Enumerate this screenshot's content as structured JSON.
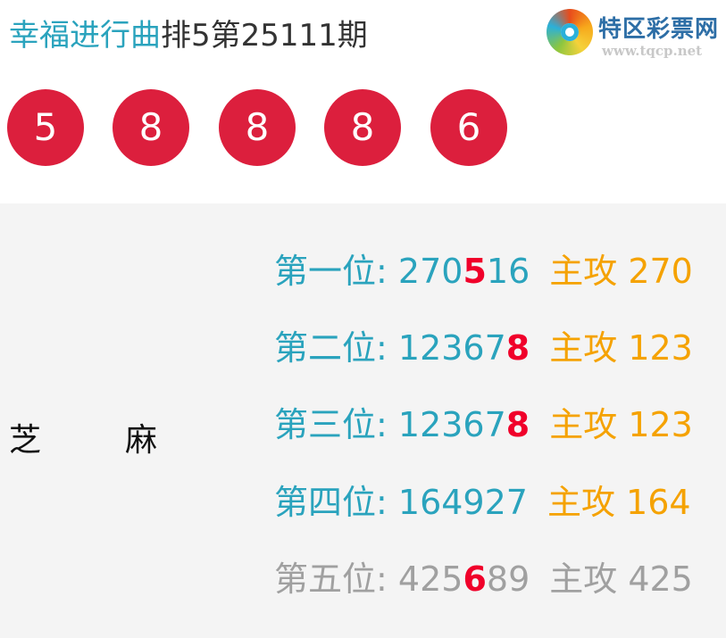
{
  "header": {
    "game": "幸福进行曲",
    "issue": "排5第25111期"
  },
  "logo": {
    "name": "特区彩票网",
    "url": "www.tqcp.net"
  },
  "balls": [
    "5",
    "8",
    "8",
    "8",
    "6"
  ],
  "colors": {
    "ball": "#dc1f3d",
    "label": "#2aa3bd",
    "hit": "#f0002a",
    "attack": "#f5a200",
    "muted": "#a0a0a0"
  },
  "name": [
    "芝",
    "麻"
  ],
  "rows": [
    {
      "label": "第一位:",
      "pre": "270",
      "hit": "5",
      "post": "16",
      "attack": "主攻 270"
    },
    {
      "label": "第二位:",
      "pre": "12367",
      "hit": "8",
      "post": "",
      "attack": "主攻 123"
    },
    {
      "label": "第三位:",
      "pre": "12367",
      "hit": "8",
      "post": "",
      "attack": "主攻 123"
    },
    {
      "label": "第四位:",
      "pre": "164927",
      "hit": "",
      "post": "",
      "attack": "主攻 164"
    },
    {
      "label": "第五位:",
      "pre": "425",
      "hit": "6",
      "post": "89",
      "attack": "主攻 425"
    }
  ]
}
